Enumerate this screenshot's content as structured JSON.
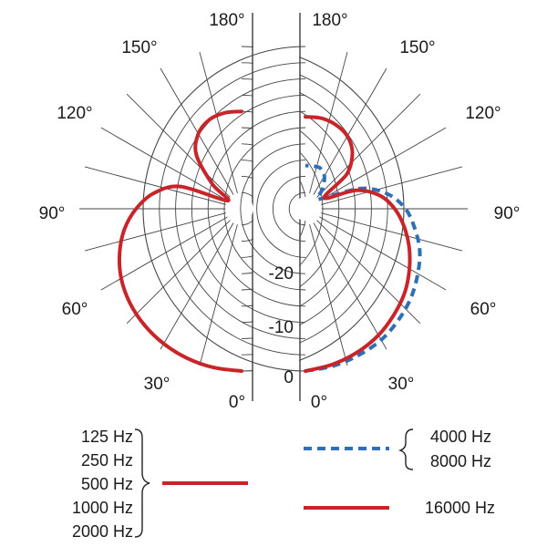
{
  "chart_data": {
    "type": "polar",
    "angle_ticks": [
      "0°",
      "30°",
      "60°",
      "90°",
      "120°",
      "150°",
      "180°"
    ],
    "radial_ticks": [
      "0",
      "-10",
      "-20"
    ],
    "radial_range_db": [
      -30,
      0
    ],
    "grid": true,
    "colors": {
      "red": "#c8252b",
      "blue": "#2f6fb5",
      "grid": "#444444"
    },
    "series": [
      {
        "name": "125 Hz, 250 Hz, 500 Hz, 1000 Hz, 2000 Hz",
        "side": "left",
        "style": "solid",
        "color": "#c8252b",
        "angles_deg": [
          0,
          10,
          20,
          30,
          40,
          50,
          60,
          70,
          80,
          90,
          100,
          110,
          120,
          130,
          140,
          150,
          160,
          170,
          180
        ],
        "db": [
          0,
          -0.2,
          -0.6,
          -1.2,
          -2.0,
          -3.0,
          -4.3,
          -6.0,
          -8.0,
          -10.5,
          -13.5,
          -18,
          -27,
          -23,
          -17,
          -14,
          -12.5,
          -12,
          -12
        ]
      },
      {
        "name": "4000 Hz, 8000 Hz",
        "side": "right",
        "style": "dashed",
        "color": "#2f6fb5",
        "angles_deg": [
          0,
          10,
          20,
          30,
          40,
          50,
          60,
          70,
          80,
          90,
          100,
          110,
          120,
          130,
          140,
          150,
          160,
          170,
          180
        ],
        "db": [
          0,
          -0.5,
          -1.2,
          -2.0,
          -3.2,
          -4.5,
          -6.0,
          -7.5,
          -9.5,
          -11.5,
          -14.5,
          -19,
          -26,
          -27,
          -25,
          -23,
          -22,
          -22,
          -22
        ]
      },
      {
        "name": "16000 Hz",
        "side": "right",
        "style": "solid",
        "color": "#c8252b",
        "angles_deg": [
          0,
          10,
          20,
          30,
          40,
          50,
          60,
          70,
          80,
          90,
          100,
          110,
          120,
          130,
          140,
          150,
          160,
          170,
          180
        ],
        "db": [
          0,
          -0.8,
          -1.8,
          -3.0,
          -4.5,
          -6.0,
          -7.8,
          -9.6,
          -11.5,
          -13.5,
          -16,
          -20,
          -26,
          -20,
          -16.5,
          -14.5,
          -13.5,
          -13,
          -13
        ]
      }
    ]
  },
  "legend": {
    "group1": [
      "125 Hz",
      "250 Hz",
      "500 Hz",
      "1000 Hz",
      "2000 Hz"
    ],
    "group2": [
      "4000 Hz",
      "8000 Hz"
    ],
    "group3": "16000 Hz"
  }
}
